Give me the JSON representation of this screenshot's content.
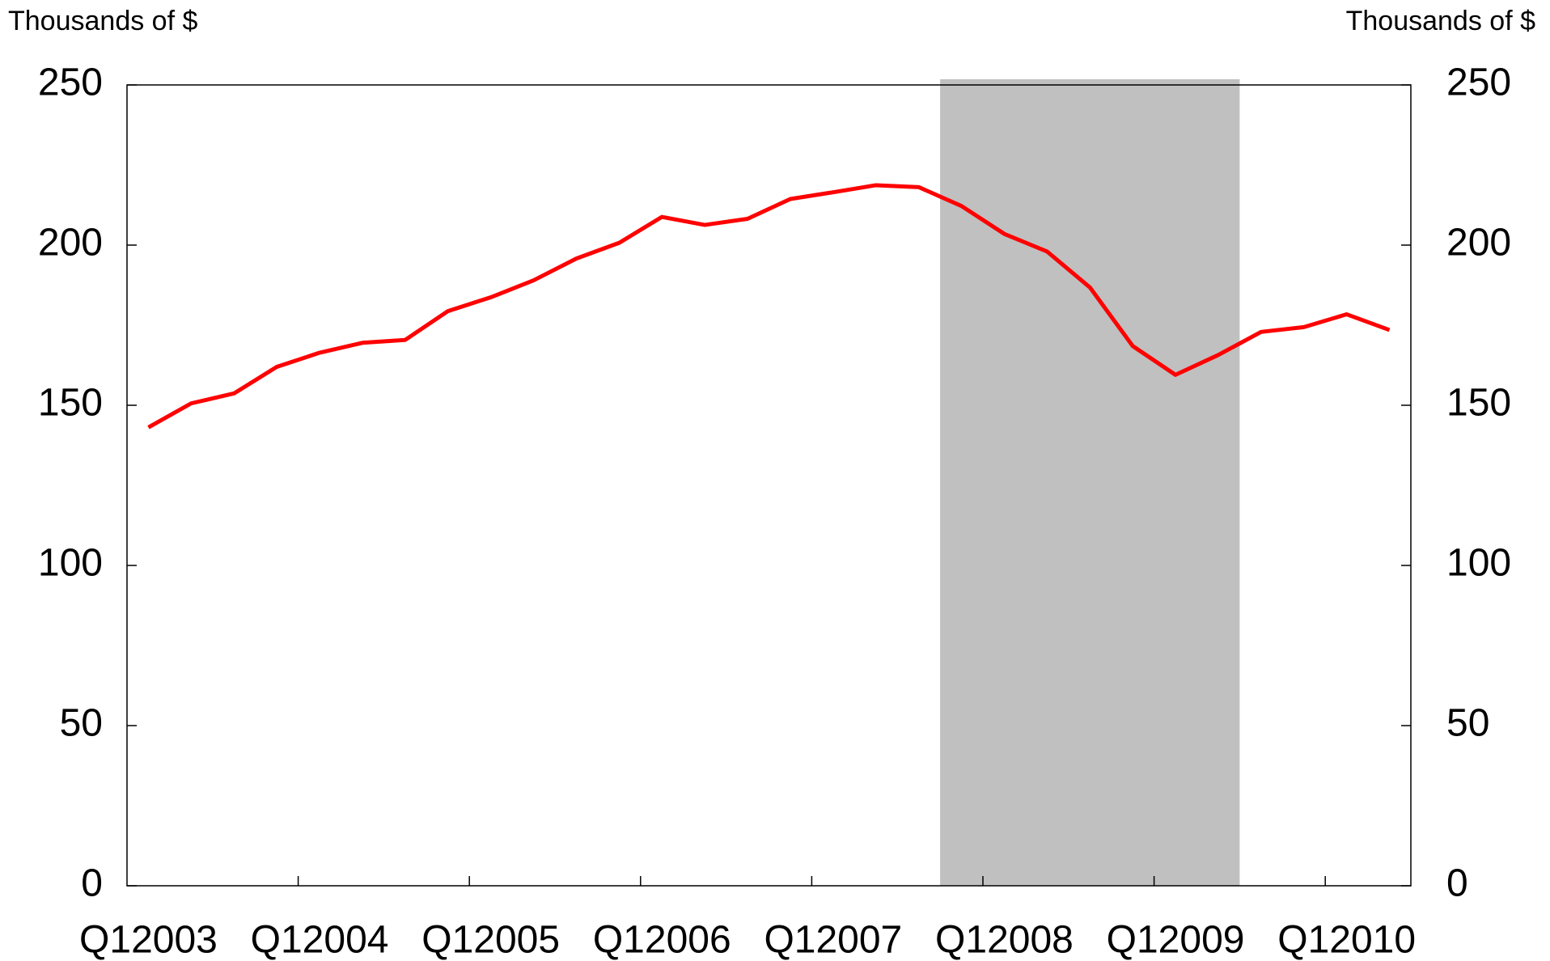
{
  "chart_data": {
    "type": "line",
    "y_title": "Thousands of $",
    "y2_title": "Thousands of $",
    "categories": [
      "Q12003",
      null,
      null,
      null,
      "Q12004",
      null,
      null,
      null,
      "Q12005",
      null,
      null,
      null,
      "Q12006",
      null,
      null,
      null,
      "Q12007",
      null,
      null,
      null,
      "Q12008",
      null,
      null,
      null,
      "Q12009",
      null,
      null,
      null,
      "Q12010",
      null
    ],
    "series": [
      {
        "color": "#ff0000",
        "values": [
          143.1,
          150.6,
          153.7,
          162,
          166.4,
          169.5,
          170.4,
          179.4,
          183.7,
          189,
          195.8,
          200.7,
          208.8,
          206.3,
          208.2,
          214.4,
          216.5,
          218.7,
          218.1,
          212.2,
          203.5,
          198,
          186.8,
          168.5,
          159.5,
          165.7,
          172.9,
          174.4,
          178.4,
          173.5
        ]
      }
    ],
    "shade_range": [
      19,
      25
    ],
    "shade_color": "#c0c0c0",
    "ylim": [
      0,
      250
    ],
    "yticks": [
      0,
      50,
      100,
      150,
      200,
      250
    ],
    "y2lim": [
      0,
      250
    ],
    "y2ticks": [
      0,
      50,
      100,
      150,
      200,
      250
    ]
  }
}
